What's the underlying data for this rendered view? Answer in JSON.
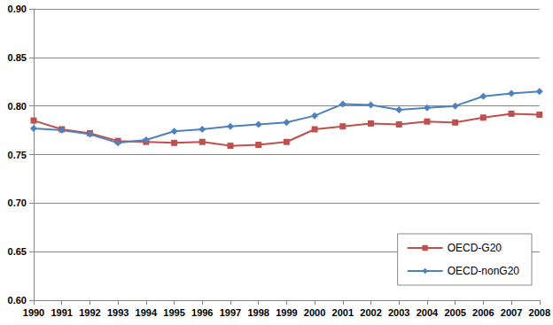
{
  "chart_data": {
    "type": "line",
    "categories": [
      "1990",
      "1991",
      "1992",
      "1993",
      "1994",
      "1995",
      "1996",
      "1997",
      "1998",
      "1999",
      "2000",
      "2001",
      "2002",
      "2003",
      "2004",
      "2005",
      "2006",
      "2007",
      "2008"
    ],
    "series": [
      {
        "name": "OECD-G20",
        "color": "#C0504D",
        "marker": "square",
        "values": [
          0.785,
          0.776,
          0.772,
          0.764,
          0.763,
          0.762,
          0.763,
          0.759,
          0.76,
          0.763,
          0.776,
          0.779,
          0.782,
          0.781,
          0.784,
          0.783,
          0.788,
          0.792,
          0.791
        ]
      },
      {
        "name": "OECD-nonG20",
        "color": "#4F81BD",
        "marker": "diamond",
        "values": [
          0.777,
          0.775,
          0.771,
          0.762,
          0.765,
          0.774,
          0.776,
          0.779,
          0.781,
          0.783,
          0.79,
          0.802,
          0.801,
          0.796,
          0.798,
          0.8,
          0.81,
          0.813,
          0.815
        ]
      }
    ],
    "ylim": [
      0.6,
      0.9
    ],
    "yticks": [
      {
        "value": 0.6,
        "label": "0.60"
      },
      {
        "value": 0.65,
        "label": "0.65"
      },
      {
        "value": 0.7,
        "label": "0.70"
      },
      {
        "value": 0.75,
        "label": "0.75"
      },
      {
        "value": 0.8,
        "label": "0.80"
      },
      {
        "value": 0.85,
        "label": "0.85"
      },
      {
        "value": 0.9,
        "label": "0.90"
      }
    ],
    "grid": true,
    "legend": "lower right"
  }
}
